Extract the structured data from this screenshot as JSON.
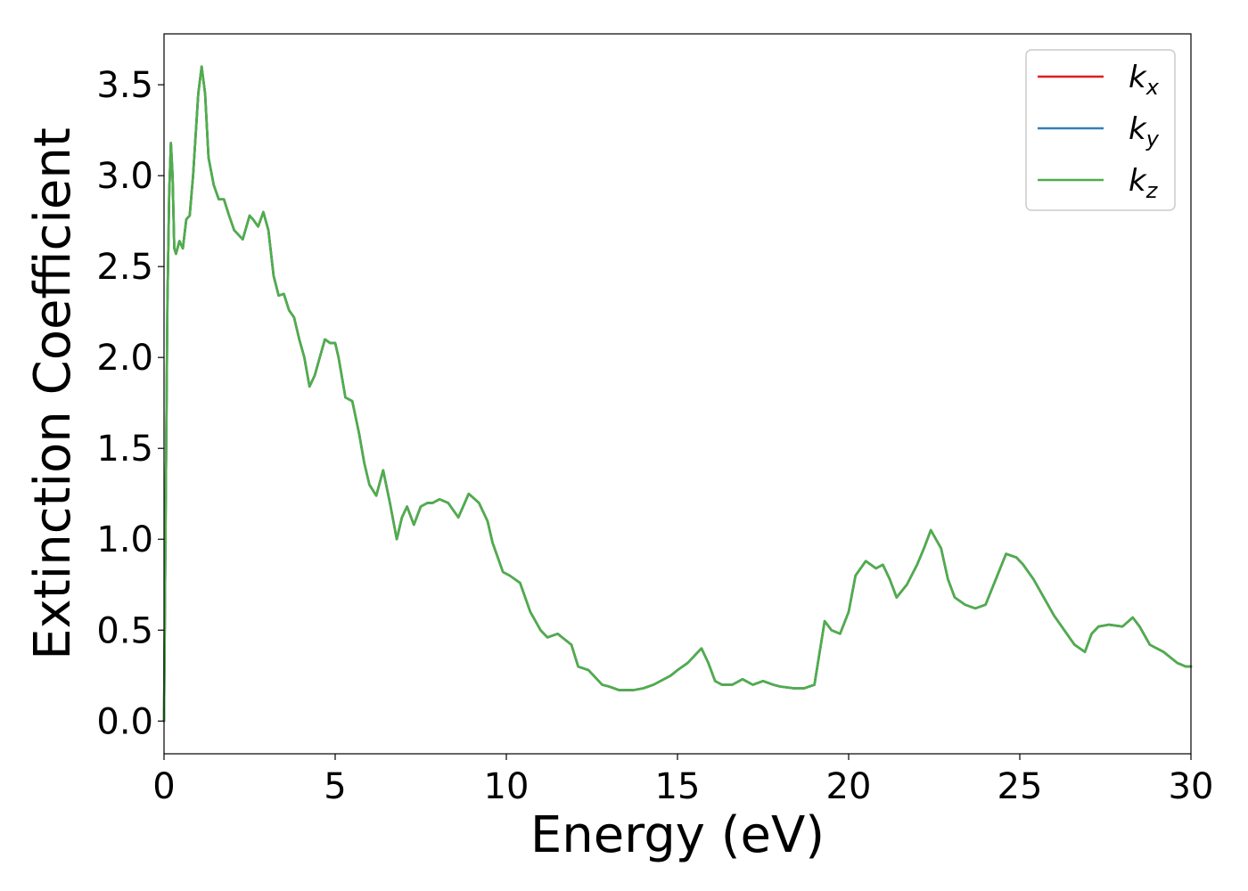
{
  "chart_data": {
    "type": "line",
    "title": "",
    "xlabel": "Energy (eV)",
    "ylabel": "Extinction Coefficient",
    "xlim": [
      0,
      30
    ],
    "ylim": [
      -0.18,
      3.78
    ],
    "xticks": [
      0,
      5,
      10,
      15,
      20,
      25,
      30
    ],
    "xtick_labels": [
      "0",
      "5",
      "10",
      "15",
      "20",
      "25",
      "30"
    ],
    "yticks": [
      0.0,
      0.5,
      1.0,
      1.5,
      2.0,
      2.5,
      3.0,
      3.5
    ],
    "ytick_labels": [
      "0.0",
      "0.5",
      "1.0",
      "1.5",
      "2.0",
      "2.5",
      "3.0",
      "3.5"
    ],
    "grid": false,
    "legend_position": "top-right",
    "series": [
      {
        "name": "k_x",
        "label_main": "k",
        "label_sub": "x",
        "color": "#e41a1c",
        "x": [
          0,
          0.05,
          0.1,
          0.15,
          0.2,
          0.25,
          0.3,
          0.35,
          0.45,
          0.55,
          0.65,
          0.75,
          0.85,
          1.0,
          1.1,
          1.2,
          1.3,
          1.45,
          1.6,
          1.75,
          1.9,
          2.05,
          2.3,
          2.5,
          2.6,
          2.75,
          2.9,
          3.05,
          3.2,
          3.35,
          3.5,
          3.65,
          3.8,
          3.95,
          4.1,
          4.25,
          4.4,
          4.55,
          4.7,
          4.85,
          5.0,
          5.1,
          5.3,
          5.5,
          5.7,
          5.85,
          6.0,
          6.2,
          6.4,
          6.6,
          6.8,
          6.95,
          7.1,
          7.3,
          7.5,
          7.7,
          7.85,
          8.05,
          8.3,
          8.6,
          8.9,
          9.2,
          9.45,
          9.6,
          9.75,
          9.9,
          10.1,
          10.4,
          10.7,
          11.0,
          11.2,
          11.5,
          11.9,
          12.1,
          12.4,
          12.6,
          12.8,
          13.0,
          13.3,
          13.7,
          14.0,
          14.3,
          14.8,
          15.0,
          15.3,
          15.7,
          15.9,
          16.1,
          16.3,
          16.6,
          16.9,
          17.2,
          17.5,
          17.8,
          18.0,
          18.4,
          18.7,
          19.0,
          19.3,
          19.5,
          19.75,
          20.0,
          20.2,
          20.5,
          20.8,
          21.0,
          21.2,
          21.4,
          21.7,
          22.0,
          22.2,
          22.4,
          22.7,
          22.9,
          23.1,
          23.4,
          23.7,
          24.0,
          24.3,
          24.6,
          24.9,
          25.1,
          25.4,
          25.7,
          26.0,
          26.3,
          26.6,
          26.9,
          27.1,
          27.3,
          27.6,
          28.0,
          28.3,
          28.5,
          28.8,
          29.2,
          29.6,
          29.85,
          30.0
        ],
        "y": [
          0.0,
          1.2,
          2.3,
          2.9,
          3.18,
          3.0,
          2.6,
          2.57,
          2.64,
          2.6,
          2.76,
          2.78,
          3.0,
          3.45,
          3.6,
          3.45,
          3.1,
          2.95,
          2.87,
          2.87,
          2.78,
          2.7,
          2.65,
          2.78,
          2.76,
          2.72,
          2.8,
          2.7,
          2.45,
          2.34,
          2.35,
          2.26,
          2.22,
          2.1,
          2.0,
          1.84,
          1.9,
          2.0,
          2.1,
          2.08,
          2.08,
          2.0,
          1.78,
          1.76,
          1.58,
          1.42,
          1.3,
          1.24,
          1.38,
          1.2,
          1.0,
          1.12,
          1.18,
          1.08,
          1.18,
          1.2,
          1.2,
          1.22,
          1.2,
          1.12,
          1.25,
          1.2,
          1.1,
          0.98,
          0.9,
          0.82,
          0.8,
          0.76,
          0.6,
          0.5,
          0.46,
          0.48,
          0.42,
          0.3,
          0.28,
          0.24,
          0.2,
          0.19,
          0.17,
          0.17,
          0.18,
          0.2,
          0.25,
          0.28,
          0.32,
          0.4,
          0.32,
          0.22,
          0.2,
          0.2,
          0.23,
          0.2,
          0.22,
          0.2,
          0.19,
          0.18,
          0.18,
          0.2,
          0.55,
          0.5,
          0.48,
          0.6,
          0.8,
          0.88,
          0.84,
          0.86,
          0.78,
          0.68,
          0.75,
          0.86,
          0.95,
          1.05,
          0.95,
          0.78,
          0.68,
          0.64,
          0.62,
          0.64,
          0.78,
          0.92,
          0.9,
          0.86,
          0.78,
          0.68,
          0.58,
          0.5,
          0.42,
          0.38,
          0.48,
          0.52,
          0.53,
          0.52,
          0.57,
          0.52,
          0.42,
          0.38,
          0.32,
          0.3,
          0.3
        ]
      },
      {
        "name": "k_y",
        "label_main": "k",
        "label_sub": "y",
        "color": "#377eb8",
        "x": [
          0,
          0.05,
          0.1,
          0.15,
          0.2,
          0.25,
          0.3,
          0.35,
          0.45,
          0.55,
          0.65,
          0.75,
          0.85,
          1.0,
          1.1,
          1.2,
          1.3,
          1.45,
          1.6,
          1.75,
          1.9,
          2.05,
          2.3,
          2.5,
          2.6,
          2.75,
          2.9,
          3.05,
          3.2,
          3.35,
          3.5,
          3.65,
          3.8,
          3.95,
          4.1,
          4.25,
          4.4,
          4.55,
          4.7,
          4.85,
          5.0,
          5.1,
          5.3,
          5.5,
          5.7,
          5.85,
          6.0,
          6.2,
          6.4,
          6.6,
          6.8,
          6.95,
          7.1,
          7.3,
          7.5,
          7.7,
          7.85,
          8.05,
          8.3,
          8.6,
          8.9,
          9.2,
          9.45,
          9.6,
          9.75,
          9.9,
          10.1,
          10.4,
          10.7,
          11.0,
          11.2,
          11.5,
          11.9,
          12.1,
          12.4,
          12.6,
          12.8,
          13.0,
          13.3,
          13.7,
          14.0,
          14.3,
          14.8,
          15.0,
          15.3,
          15.7,
          15.9,
          16.1,
          16.3,
          16.6,
          16.9,
          17.2,
          17.5,
          17.8,
          18.0,
          18.4,
          18.7,
          19.0,
          19.3,
          19.5,
          19.75,
          20.0,
          20.2,
          20.5,
          20.8,
          21.0,
          21.2,
          21.4,
          21.7,
          22.0,
          22.2,
          22.4,
          22.7,
          22.9,
          23.1,
          23.4,
          23.7,
          24.0,
          24.3,
          24.6,
          24.9,
          25.1,
          25.4,
          25.7,
          26.0,
          26.3,
          26.6,
          26.9,
          27.1,
          27.3,
          27.6,
          28.0,
          28.3,
          28.5,
          28.8,
          29.2,
          29.6,
          29.85,
          30.0
        ],
        "y": [
          0.0,
          1.2,
          2.3,
          2.9,
          3.18,
          3.0,
          2.6,
          2.57,
          2.64,
          2.6,
          2.76,
          2.78,
          3.0,
          3.45,
          3.6,
          3.45,
          3.1,
          2.95,
          2.87,
          2.87,
          2.78,
          2.7,
          2.65,
          2.78,
          2.76,
          2.72,
          2.8,
          2.7,
          2.45,
          2.34,
          2.35,
          2.26,
          2.22,
          2.1,
          2.0,
          1.84,
          1.9,
          2.0,
          2.1,
          2.08,
          2.08,
          2.0,
          1.78,
          1.76,
          1.58,
          1.42,
          1.3,
          1.24,
          1.38,
          1.2,
          1.0,
          1.12,
          1.18,
          1.08,
          1.18,
          1.2,
          1.2,
          1.22,
          1.2,
          1.12,
          1.25,
          1.2,
          1.1,
          0.98,
          0.9,
          0.82,
          0.8,
          0.76,
          0.6,
          0.5,
          0.46,
          0.48,
          0.42,
          0.3,
          0.28,
          0.24,
          0.2,
          0.19,
          0.17,
          0.17,
          0.18,
          0.2,
          0.25,
          0.28,
          0.32,
          0.4,
          0.32,
          0.22,
          0.2,
          0.2,
          0.23,
          0.2,
          0.22,
          0.2,
          0.19,
          0.18,
          0.18,
          0.2,
          0.55,
          0.5,
          0.48,
          0.6,
          0.8,
          0.88,
          0.84,
          0.86,
          0.78,
          0.68,
          0.75,
          0.86,
          0.95,
          1.05,
          0.95,
          0.78,
          0.68,
          0.64,
          0.62,
          0.64,
          0.78,
          0.92,
          0.9,
          0.86,
          0.78,
          0.68,
          0.58,
          0.5,
          0.42,
          0.38,
          0.48,
          0.52,
          0.53,
          0.52,
          0.57,
          0.52,
          0.42,
          0.38,
          0.32,
          0.3,
          0.3
        ]
      },
      {
        "name": "k_z",
        "label_main": "k",
        "label_sub": "z",
        "color": "#4daf4a",
        "x": [
          0,
          0.05,
          0.1,
          0.15,
          0.2,
          0.25,
          0.3,
          0.35,
          0.45,
          0.55,
          0.65,
          0.75,
          0.85,
          1.0,
          1.1,
          1.2,
          1.3,
          1.45,
          1.6,
          1.75,
          1.9,
          2.05,
          2.3,
          2.5,
          2.6,
          2.75,
          2.9,
          3.05,
          3.2,
          3.35,
          3.5,
          3.65,
          3.8,
          3.95,
          4.1,
          4.25,
          4.4,
          4.55,
          4.7,
          4.85,
          5.0,
          5.1,
          5.3,
          5.5,
          5.7,
          5.85,
          6.0,
          6.2,
          6.4,
          6.6,
          6.8,
          6.95,
          7.1,
          7.3,
          7.5,
          7.7,
          7.85,
          8.05,
          8.3,
          8.6,
          8.9,
          9.2,
          9.45,
          9.6,
          9.75,
          9.9,
          10.1,
          10.4,
          10.7,
          11.0,
          11.2,
          11.5,
          11.9,
          12.1,
          12.4,
          12.6,
          12.8,
          13.0,
          13.3,
          13.7,
          14.0,
          14.3,
          14.8,
          15.0,
          15.3,
          15.7,
          15.9,
          16.1,
          16.3,
          16.6,
          16.9,
          17.2,
          17.5,
          17.8,
          18.0,
          18.4,
          18.7,
          19.0,
          19.3,
          19.5,
          19.75,
          20.0,
          20.2,
          20.5,
          20.8,
          21.0,
          21.2,
          21.4,
          21.7,
          22.0,
          22.2,
          22.4,
          22.7,
          22.9,
          23.1,
          23.4,
          23.7,
          24.0,
          24.3,
          24.6,
          24.9,
          25.1,
          25.4,
          25.7,
          26.0,
          26.3,
          26.6,
          26.9,
          27.1,
          27.3,
          27.6,
          28.0,
          28.3,
          28.5,
          28.8,
          29.2,
          29.6,
          29.85,
          30.0
        ],
        "y": [
          0.0,
          1.2,
          2.3,
          2.9,
          3.18,
          3.0,
          2.6,
          2.57,
          2.64,
          2.6,
          2.76,
          2.78,
          3.0,
          3.45,
          3.6,
          3.45,
          3.1,
          2.95,
          2.87,
          2.87,
          2.78,
          2.7,
          2.65,
          2.78,
          2.76,
          2.72,
          2.8,
          2.7,
          2.45,
          2.34,
          2.35,
          2.26,
          2.22,
          2.1,
          2.0,
          1.84,
          1.9,
          2.0,
          2.1,
          2.08,
          2.08,
          2.0,
          1.78,
          1.76,
          1.58,
          1.42,
          1.3,
          1.24,
          1.38,
          1.2,
          1.0,
          1.12,
          1.18,
          1.08,
          1.18,
          1.2,
          1.2,
          1.22,
          1.2,
          1.12,
          1.25,
          1.2,
          1.1,
          0.98,
          0.9,
          0.82,
          0.8,
          0.76,
          0.6,
          0.5,
          0.46,
          0.48,
          0.42,
          0.3,
          0.28,
          0.24,
          0.2,
          0.19,
          0.17,
          0.17,
          0.18,
          0.2,
          0.25,
          0.28,
          0.32,
          0.4,
          0.32,
          0.22,
          0.2,
          0.2,
          0.23,
          0.2,
          0.22,
          0.2,
          0.19,
          0.18,
          0.18,
          0.2,
          0.55,
          0.5,
          0.48,
          0.6,
          0.8,
          0.88,
          0.84,
          0.86,
          0.78,
          0.68,
          0.75,
          0.86,
          0.95,
          1.05,
          0.95,
          0.78,
          0.68,
          0.64,
          0.62,
          0.64,
          0.78,
          0.92,
          0.9,
          0.86,
          0.78,
          0.68,
          0.58,
          0.5,
          0.42,
          0.38,
          0.48,
          0.52,
          0.53,
          0.52,
          0.57,
          0.52,
          0.42,
          0.38,
          0.32,
          0.3,
          0.3
        ]
      }
    ]
  }
}
